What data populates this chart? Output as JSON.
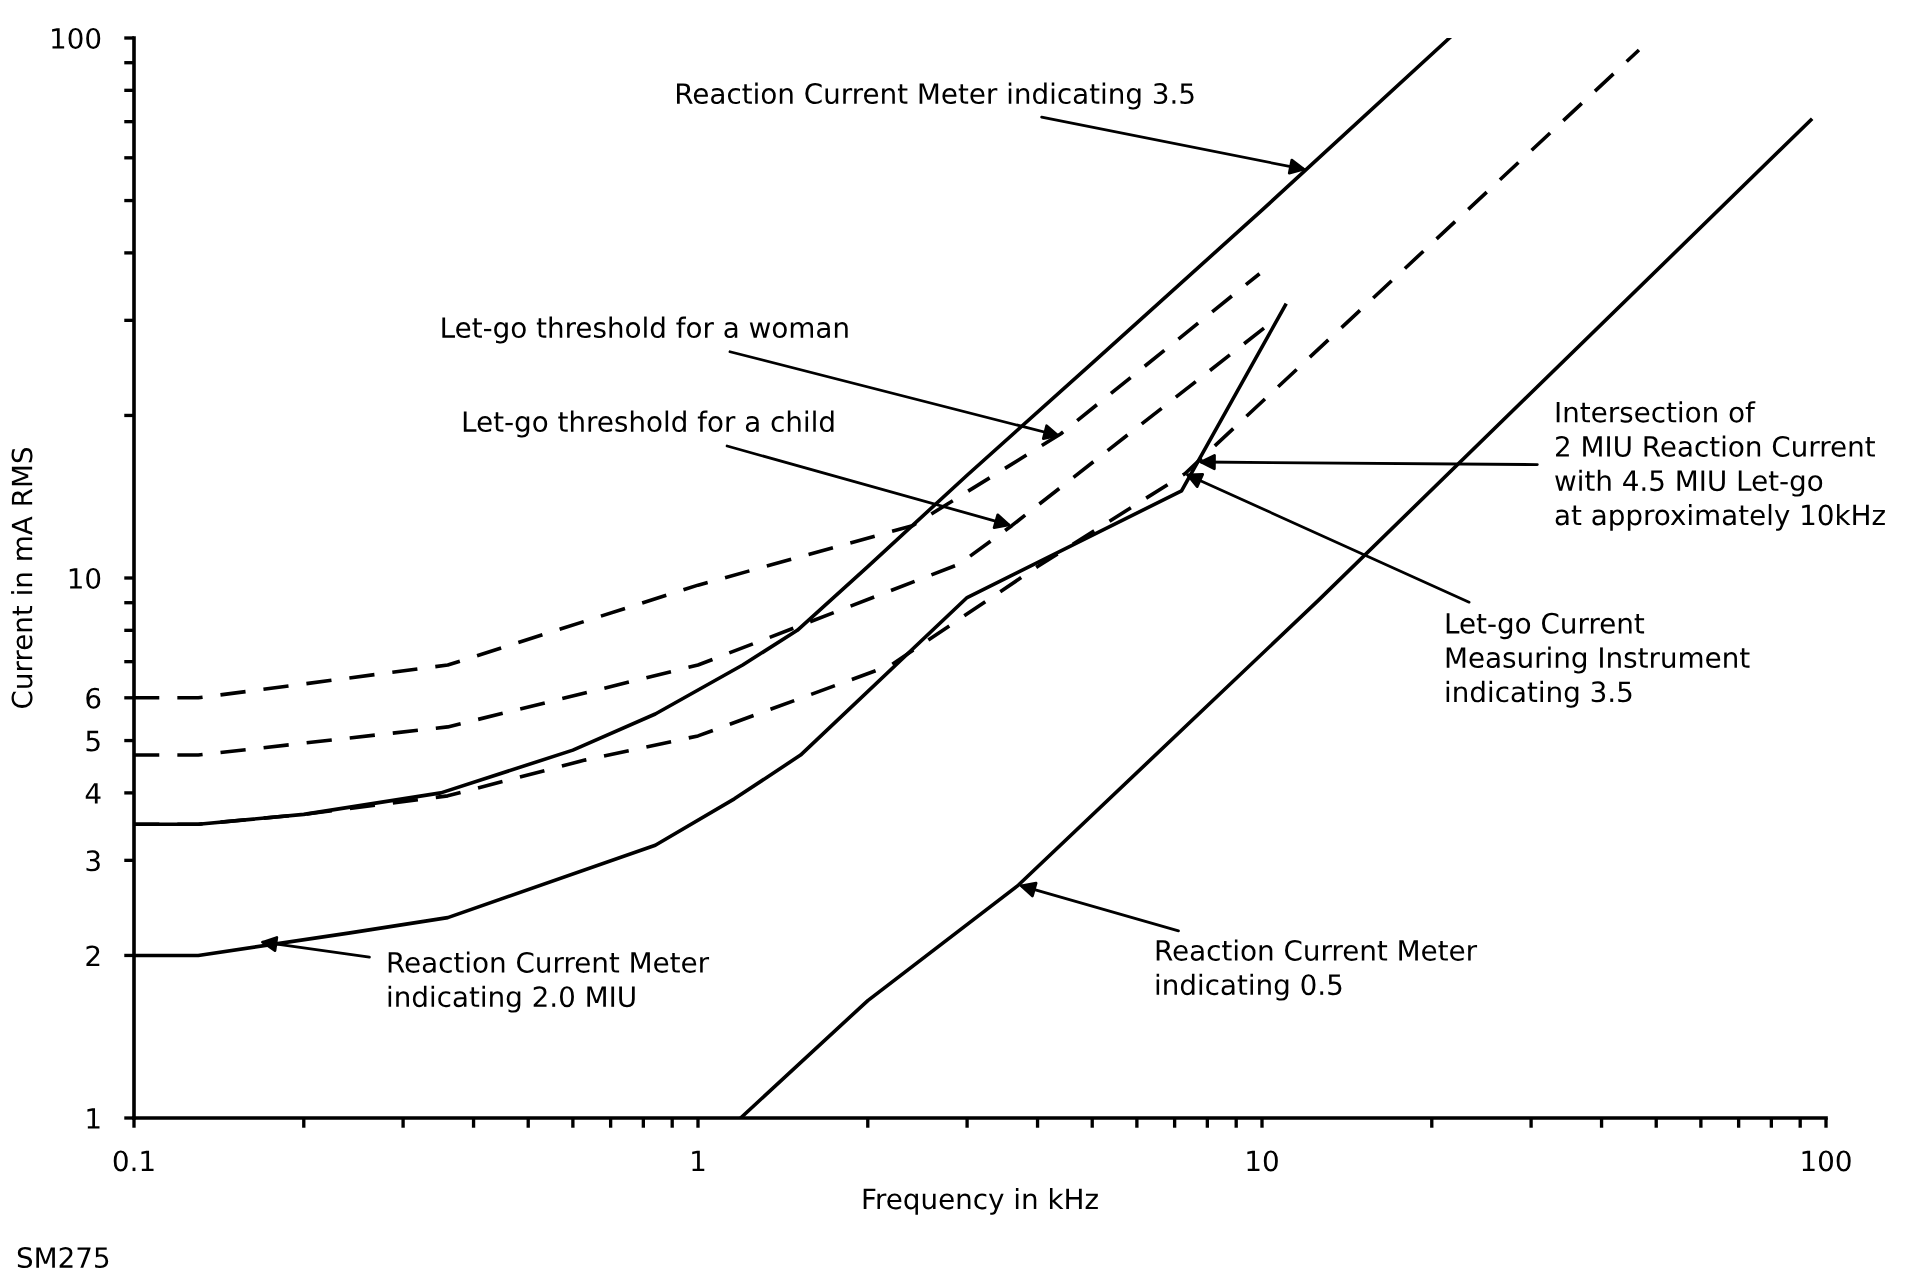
{
  "chart_data": {
    "type": "line",
    "xlabel": "Frequency in kHz",
    "ylabel": "Current in mA RMS",
    "log": "xy",
    "grid": false,
    "marker": "none",
    "xlim": [
      0.1,
      100
    ],
    "ylim": [
      1,
      100
    ],
    "xticks": [
      0.1,
      {
        "value": 0.2,
        "label": null
      },
      {
        "value": 0.3,
        "label": null
      },
      {
        "value": 0.4,
        "label": null
      },
      {
        "value": 0.5,
        "label": null
      },
      {
        "value": 0.6,
        "label": null
      },
      {
        "value": 0.7,
        "label": null
      },
      {
        "value": 0.8,
        "label": null
      },
      {
        "value": 0.9,
        "label": null
      },
      1,
      {
        "value": 2,
        "label": null
      },
      {
        "value": 3,
        "label": null
      },
      {
        "value": 4,
        "label": null
      },
      {
        "value": 5,
        "label": null
      },
      {
        "value": 6,
        "label": null
      },
      {
        "value": 7,
        "label": null
      },
      {
        "value": 8,
        "label": null
      },
      {
        "value": 9,
        "label": null
      },
      10,
      {
        "value": 20,
        "label": null
      },
      {
        "value": 30,
        "label": null
      },
      {
        "value": 40,
        "label": null
      },
      {
        "value": 50,
        "label": null
      },
      {
        "value": 60,
        "label": null
      },
      {
        "value": 70,
        "label": null
      },
      {
        "value": 80,
        "label": null
      },
      {
        "value": 90,
        "label": null
      },
      100
    ],
    "yticks": [
      1,
      2,
      3,
      4,
      5,
      6,
      {
        "value": 7,
        "label": null
      },
      {
        "value": 8,
        "label": null
      },
      {
        "value": 9,
        "label": null
      },
      10,
      {
        "value": 20,
        "label": null
      },
      {
        "value": 30,
        "label": null
      },
      {
        "value": 40,
        "label": null
      },
      {
        "value": 50,
        "label": null
      },
      {
        "value": 60,
        "label": null
      },
      {
        "value": 70,
        "label": null
      },
      {
        "value": 80,
        "label": null
      },
      {
        "value": 90,
        "label": null
      },
      100
    ],
    "series": [
      {
        "color": "#000000",
        "line_style": "solid",
        "x": [
          0.1,
          0.13,
          0.2,
          0.35,
          0.6,
          0.84,
          1.2,
          1.5,
          2,
          3,
          5,
          10,
          21.5
        ],
        "values": [
          3.5,
          3.5,
          3.65,
          4.0,
          4.8,
          5.6,
          6.9,
          8,
          10.5,
          15.5,
          25,
          48,
          100
        ]
      },
      {
        "color": "#000000",
        "line_style": "dashed",
        "x": [
          0.1,
          0.13,
          0.36,
          1.0,
          2.4,
          4.4,
          9.9
        ],
        "values": [
          6,
          6,
          6.9,
          9.7,
          12.5,
          18.5,
          36.6
        ]
      },
      {
        "color": "#000000",
        "line_style": "dashed",
        "x": [
          0.1,
          0.13,
          0.36,
          1.0,
          2.9,
          3.6,
          10.5
        ],
        "values": [
          4.7,
          4.7,
          5.3,
          6.9,
          10.6,
          12.5,
          30
        ]
      },
      {
        "color": "#000000",
        "line_style": "dashed",
        "x": [
          0.1,
          0.13,
          0.2,
          0.36,
          0.63,
          1.0,
          2.2,
          4,
          7.3,
          46.6
        ],
        "values": [
          3.5,
          3.5,
          3.65,
          3.95,
          4.6,
          5.1,
          6.9,
          10.5,
          15.6,
          95
        ]
      },
      {
        "color": "#000000",
        "line_style": "solid",
        "x": [
          0.1,
          0.13,
          0.24,
          0.36,
          0.84,
          1.16,
          1.52,
          3,
          7.2,
          11
        ],
        "values": [
          2,
          2,
          2.2,
          2.35,
          3.2,
          3.9,
          4.7,
          9.2,
          14.5,
          32
        ]
      },
      {
        "color": "#000000",
        "line_style": "solid",
        "x": [
          1.19,
          2.0,
          3.7,
          12.6,
          94
        ],
        "values": [
          1,
          1.65,
          2.7,
          9.1,
          70.5
        ]
      }
    ],
    "annotations": [
      {
        "text": "Reaction Current Meter indicating 3.5",
        "x": 12,
        "y": 57
      },
      {
        "text": "Let-go threshold for a woman",
        "x": 4.4,
        "y": 18.3
      },
      {
        "text": "Let-go threshold for a child",
        "x": 3.6,
        "y": 12.5
      },
      {
        "text": "Intersection of\n2 MIU Reaction Current\nwith 4.5 MIU Let-go\nat approximately 10kHz",
        "x": 7.7,
        "y": 16.4
      },
      {
        "text": "Let-go Current\nMeasuring Instrument\nindicating 3.5",
        "x": 7.3,
        "y": 15.6
      },
      {
        "text": "Reaction Current Meter\nindicating 2.0 MIU",
        "x": 0.167,
        "y": 2.12
      },
      {
        "text": "Reaction Current Meter\nindicating 0.5",
        "x": 3.7,
        "y": 2.7
      },
      "SM275"
    ]
  }
}
